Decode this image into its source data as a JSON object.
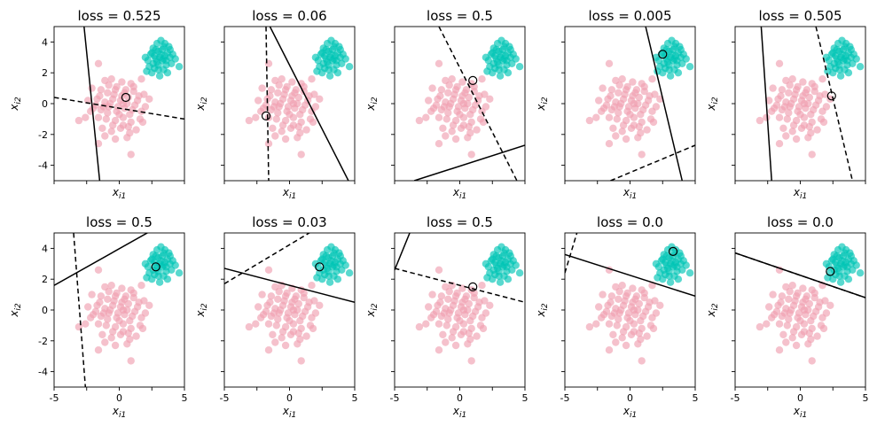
{
  "figure": {
    "background": "#ffffff"
  },
  "colors": {
    "class_a": "#f0a0b0",
    "class_b": "#00c5b5",
    "axis": "#000000"
  },
  "chart_data": {
    "type": "scatter",
    "grid": false,
    "sharex": true,
    "sharey": true,
    "xlim": [
      -5,
      5
    ],
    "ylim": [
      -5,
      5
    ],
    "xticks": [
      -5,
      -2.5,
      0,
      2.5,
      5
    ],
    "xtick_labels": [
      "-5",
      "",
      "0",
      "",
      "5"
    ],
    "yticks": [
      -4,
      -2,
      0,
      2,
      4
    ],
    "ytick_labels": [
      "-4",
      "-2",
      "0",
      "2",
      "4"
    ],
    "xlabel": "x_{i1}",
    "ylabel": "x_{i2}",
    "series": [
      {
        "name": "",
        "color": "#f0a0b0",
        "points": [
          [
            -1.6,
            2.6
          ],
          [
            -1.1,
            1.5
          ],
          [
            -0.6,
            1.6
          ],
          [
            0.2,
            1.4
          ],
          [
            0.9,
            1.3
          ],
          [
            1.7,
            1.6
          ],
          [
            -2.1,
            1.0
          ],
          [
            -1.4,
            0.9
          ],
          [
            -0.9,
            0.7
          ],
          [
            -0.3,
            0.9
          ],
          [
            0.4,
            0.7
          ],
          [
            1.1,
            0.8
          ],
          [
            1.9,
            0.6
          ],
          [
            -2.4,
            0.2
          ],
          [
            -1.7,
            0.3
          ],
          [
            -1.1,
            0.1
          ],
          [
            -0.5,
            0.3
          ],
          [
            0.1,
            0.2
          ],
          [
            0.7,
            0.4
          ],
          [
            1.4,
            0.2
          ],
          [
            2.3,
            0.3
          ],
          [
            -2.0,
            -0.3
          ],
          [
            -1.4,
            -0.4
          ],
          [
            -0.8,
            -0.2
          ],
          [
            -0.2,
            -0.5
          ],
          [
            0.4,
            -0.3
          ],
          [
            1.0,
            -0.4
          ],
          [
            1.7,
            -0.5
          ],
          [
            -2.6,
            -0.9
          ],
          [
            -1.6,
            -0.9
          ],
          [
            -1.0,
            -1.0
          ],
          [
            -0.3,
            -1.1
          ],
          [
            0.3,
            -0.9
          ],
          [
            0.9,
            -1.2
          ],
          [
            1.6,
            -1.0
          ],
          [
            -1.3,
            -1.6
          ],
          [
            -0.6,
            -1.8
          ],
          [
            0.1,
            -1.6
          ],
          [
            0.8,
            -1.9
          ],
          [
            1.3,
            -1.7
          ],
          [
            -1.1,
            -2.1
          ],
          [
            -0.3,
            -2.3
          ],
          [
            0.6,
            -2.2
          ],
          [
            -1.6,
            -2.6
          ],
          [
            -3.1,
            -1.1
          ],
          [
            0.9,
            -3.3
          ],
          [
            0.3,
            0.0
          ],
          [
            -0.1,
            -0.2
          ],
          [
            0.6,
            0.0
          ],
          [
            -0.7,
            0.0
          ],
          [
            1.2,
            -0.1
          ],
          [
            -1.2,
            -0.2
          ],
          [
            0.2,
            0.5
          ],
          [
            0.0,
            -0.7
          ],
          [
            -0.4,
            0.6
          ],
          [
            0.8,
            -0.7
          ],
          [
            -1.8,
            -0.1
          ],
          [
            1.5,
            0.5
          ],
          [
            -0.9,
            -0.6
          ],
          [
            0.5,
            0.9
          ],
          [
            -0.2,
            1.1
          ],
          [
            2.0,
            -0.2
          ],
          [
            -2.2,
            -0.5
          ],
          [
            0.3,
            -1.4
          ],
          [
            -0.8,
            1.2
          ],
          [
            1.1,
            1.1
          ],
          [
            -1.5,
            0.5
          ],
          [
            0.7,
            -1.5
          ],
          [
            -0.5,
            -1.4
          ],
          [
            1.8,
            -1.2
          ]
        ]
      },
      {
        "name": "",
        "color": "#00c5b5",
        "points": [
          [
            2.4,
            3.2
          ],
          [
            2.8,
            3.5
          ],
          [
            3.1,
            3.0
          ],
          [
            3.4,
            3.7
          ],
          [
            3.7,
            3.3
          ],
          [
            2.6,
            2.6
          ],
          [
            3.0,
            2.2
          ],
          [
            3.3,
            2.8
          ],
          [
            3.6,
            2.5
          ],
          [
            3.9,
            3.0
          ],
          [
            2.2,
            2.8
          ],
          [
            2.5,
            2.0
          ],
          [
            2.9,
            3.9
          ],
          [
            3.2,
            4.1
          ],
          [
            3.5,
            3.9
          ],
          [
            3.8,
            3.7
          ],
          [
            4.1,
            3.2
          ],
          [
            2.7,
            3.1
          ],
          [
            3.0,
            3.4
          ],
          [
            3.4,
            2.2
          ],
          [
            3.7,
            2.0
          ],
          [
            2.3,
            2.4
          ],
          [
            2.0,
            3.0
          ],
          [
            4.0,
            2.6
          ],
          [
            3.2,
            3.2
          ],
          [
            2.9,
            2.7
          ],
          [
            3.5,
            3.1
          ],
          [
            2.6,
            3.6
          ],
          [
            4.3,
            2.9
          ],
          [
            3.1,
            1.8
          ],
          [
            4.6,
            2.4
          ],
          [
            2.1,
            2.1
          ],
          [
            3.3,
            3.5
          ],
          [
            2.8,
            2.9
          ],
          [
            3.6,
            2.8
          ],
          [
            3.0,
            2.5
          ],
          [
            2.5,
            3.3
          ],
          [
            3.9,
            3.5
          ],
          [
            3.4,
            2.9
          ],
          [
            2.7,
            2.3
          ]
        ]
      }
    ],
    "panels": [
      {
        "title": "loss = 0.525",
        "marked": [
          0.5,
          0.4
        ],
        "lines": [
          {
            "style": "solid",
            "p1": [
              -2.7,
              5.0
            ],
            "p2": [
              -1.5,
              -5.0
            ]
          },
          {
            "style": "dashed",
            "p1": [
              -5.0,
              0.4
            ],
            "p2": [
              5.0,
              -1.0
            ]
          }
        ]
      },
      {
        "title": "loss = 0.06",
        "marked": [
          -1.8,
          -0.8
        ],
        "lines": [
          {
            "style": "solid",
            "p1": [
              -1.5,
              5.0
            ],
            "p2": [
              5.0,
              -5.8
            ]
          },
          {
            "style": "dashed",
            "p1": [
              -1.8,
              5.0
            ],
            "p2": [
              -1.6,
              -5.0
            ]
          }
        ]
      },
      {
        "title": "loss = 0.5",
        "marked": [
          1.0,
          1.5
        ],
        "lines": [
          {
            "style": "solid",
            "p1": [
              -3.5,
              -5.0
            ],
            "p2": [
              5.0,
              -2.7
            ]
          },
          {
            "style": "dashed",
            "p1": [
              -1.6,
              5.0
            ],
            "p2": [
              4.8,
              -5.7
            ]
          }
        ]
      },
      {
        "title": "loss = 0.005",
        "marked": [
          2.5,
          3.2
        ],
        "lines": [
          {
            "style": "solid",
            "p1": [
              1.2,
              5.0
            ],
            "p2": [
              4.0,
              -5.0
            ]
          },
          {
            "style": "dashed",
            "p1": [
              -1.5,
              -5.0
            ],
            "p2": [
              5.0,
              -2.7
            ]
          }
        ]
      },
      {
        "title": "loss = 0.505",
        "marked": [
          2.4,
          0.5
        ],
        "lines": [
          {
            "style": "solid",
            "p1": [
              -3.0,
              5.0
            ],
            "p2": [
              -2.2,
              -5.0
            ]
          },
          {
            "style": "dashed",
            "p1": [
              1.2,
              5.0
            ],
            "p2": [
              4.2,
              -5.7
            ]
          }
        ]
      },
      {
        "title": "loss = 0.5",
        "marked": [
          2.8,
          2.8
        ],
        "lines": [
          {
            "style": "solid",
            "p1": [
              -5.0,
              1.6
            ],
            "p2": [
              5.3,
              6.5
            ]
          },
          {
            "style": "dashed",
            "p1": [
              -3.5,
              5.0
            ],
            "p2": [
              -2.6,
              -5.0
            ]
          }
        ]
      },
      {
        "title": "loss = 0.03",
        "marked": [
          2.3,
          2.8
        ],
        "lines": [
          {
            "style": "solid",
            "p1": [
              -5.0,
              2.7
            ],
            "p2": [
              5.0,
              0.5
            ]
          },
          {
            "style": "dashed",
            "p1": [
              -5.0,
              1.7
            ],
            "p2": [
              2.5,
              5.5
            ]
          }
        ]
      },
      {
        "title": "loss = 0.5",
        "marked": [
          1.0,
          1.5
        ],
        "lines": [
          {
            "style": "solid",
            "p1": [
              -5.0,
              2.6
            ],
            "p2": [
              -3.6,
              5.5
            ]
          },
          {
            "style": "dashed",
            "p1": [
              -5.0,
              2.7
            ],
            "p2": [
              5.0,
              0.5
            ]
          }
        ]
      },
      {
        "title": "loss = 0.0",
        "marked": [
          3.3,
          3.8
        ],
        "lines": [
          {
            "style": "solid",
            "p1": [
              -5.0,
              3.6
            ],
            "p2": [
              5.0,
              0.9
            ]
          },
          {
            "style": "dashed",
            "p1": [
              -5.0,
              2.4
            ],
            "p2": [
              -3.9,
              5.5
            ]
          }
        ]
      },
      {
        "title": "loss = 0.0",
        "marked": [
          2.3,
          2.5
        ],
        "lines": [
          {
            "style": "solid",
            "p1": [
              -5.0,
              3.7
            ],
            "p2": [
              5.0,
              0.8
            ]
          },
          {
            "style": "dashed",
            "p1": [
              -5.0,
              3.7
            ],
            "p2": [
              5.0,
              0.8
            ]
          }
        ]
      }
    ]
  }
}
